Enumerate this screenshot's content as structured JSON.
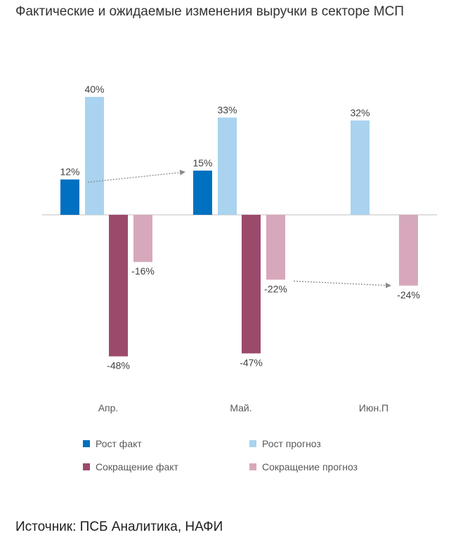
{
  "title": "Фактические и ожидаемые изменения выручки в секторе МСП",
  "source": "Источник: ПСБ Аналитика, НАФИ",
  "chart_data": {
    "type": "bar",
    "title": "Фактические и ожидаемые изменения выручки в секторе МСП",
    "categories": [
      "Апр.",
      "Май.",
      "Июн.П"
    ],
    "series": [
      {
        "name": "Рост факт",
        "color": "#0070c0",
        "values": [
          12,
          15,
          null
        ],
        "labels": [
          "12%",
          "15%",
          ""
        ]
      },
      {
        "name": "Рост прогноз",
        "color": "#a9d3ef",
        "values": [
          40,
          33,
          32
        ],
        "labels": [
          "40%",
          "33%",
          "32%"
        ]
      },
      {
        "name": "Сокращение факт",
        "color": "#9b4a6c",
        "values": [
          -48,
          -47,
          null
        ],
        "labels": [
          "-48%",
          "-47%",
          ""
        ]
      },
      {
        "name": "Сокращение прогноз",
        "color": "#d7a8bb",
        "values": [
          -16,
          -22,
          -24
        ],
        "labels": [
          "-16%",
          "-22%",
          "-24%"
        ]
      }
    ],
    "ylim": [
      -60,
      50
    ],
    "unit": "%",
    "grid": false,
    "legend": "bottom",
    "annotations": [
      {
        "type": "dashed-arrow",
        "from": {
          "series": "Рост факт",
          "category": "Апр."
        },
        "to": {
          "series": "Рост факт",
          "category": "Май."
        }
      },
      {
        "type": "dashed-arrow",
        "from": {
          "series": "Сокращение прогноз",
          "category": "Май."
        },
        "to": {
          "series": "Сокращение прогноз",
          "category": "Июн.П"
        }
      }
    ]
  }
}
